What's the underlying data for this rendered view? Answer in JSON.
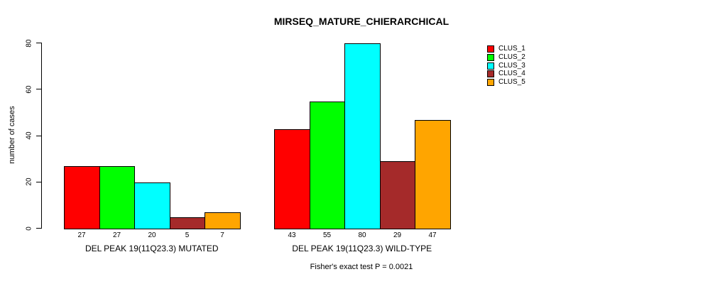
{
  "title": "MIRSEQ_MATURE_CHIERARCHICAL",
  "chart_data": {
    "type": "bar",
    "title": "MIRSEQ_MATURE_CHIERARCHICAL",
    "ylabel": "number of cases",
    "xlabel": "",
    "ylim": [
      0,
      80
    ],
    "yticks": [
      "0",
      "20",
      "40",
      "60",
      "80"
    ],
    "ytick_values": [
      0,
      20,
      40,
      60,
      80
    ],
    "grid": false,
    "legend_position": "right",
    "categories": [
      "DEL PEAK 19(11Q23.3) MUTATED",
      "DEL PEAK 19(11Q23.3) WILD-TYPE"
    ],
    "series": [
      {
        "name": "CLUS_1",
        "color": "#FF0000",
        "values": [
          27,
          43
        ]
      },
      {
        "name": "CLUS_2",
        "color": "#00FF00",
        "values": [
          27,
          55
        ]
      },
      {
        "name": "CLUS_3",
        "color": "#00FFFF",
        "values": [
          20,
          80
        ]
      },
      {
        "name": "CLUS_4",
        "color": "#A52A2A",
        "values": [
          5,
          29
        ]
      },
      {
        "name": "CLUS_5",
        "color": "#FFA500",
        "values": [
          7,
          47
        ]
      }
    ],
    "bar_value_labels": [
      [
        "27",
        "27",
        "20",
        "5",
        "7"
      ],
      [
        "43",
        "55",
        "80",
        "29",
        "47"
      ]
    ],
    "annotation": "Fisher's exact test P = 0.0021"
  },
  "legend": {
    "items": [
      {
        "label": "CLUS_1",
        "color": "#FF0000"
      },
      {
        "label": "CLUS_2",
        "color": "#00FF00"
      },
      {
        "label": "CLUS_3",
        "color": "#00FFFF"
      },
      {
        "label": "CLUS_4",
        "color": "#A52A2A"
      },
      {
        "label": "CLUS_5",
        "color": "#FFA500"
      }
    ]
  },
  "colors": {
    "background": "#FFFFFF",
    "axis": "#000000",
    "text": "#000000"
  }
}
